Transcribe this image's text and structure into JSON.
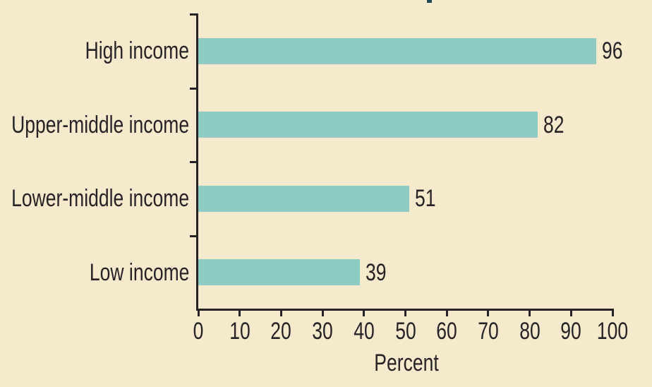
{
  "chart_data": {
    "type": "bar",
    "orientation": "horizontal",
    "categories": [
      "High income",
      "Upper-middle income",
      "Lower-middle income",
      "Low income"
    ],
    "values": [
      96,
      82,
      51,
      39
    ],
    "data_labels": [
      "96",
      "82",
      "51",
      "39"
    ],
    "xlabel": "Percent",
    "xlim": [
      0,
      100
    ],
    "xticks": [
      0,
      10,
      20,
      30,
      40,
      50,
      60,
      70,
      80,
      90,
      100
    ],
    "grid": false,
    "legend": "none",
    "data_labels_shown": true
  },
  "colors": {
    "background": "#f5eacc",
    "bar": "#8ecbc3",
    "axis": "#272325",
    "text": "#272325"
  }
}
